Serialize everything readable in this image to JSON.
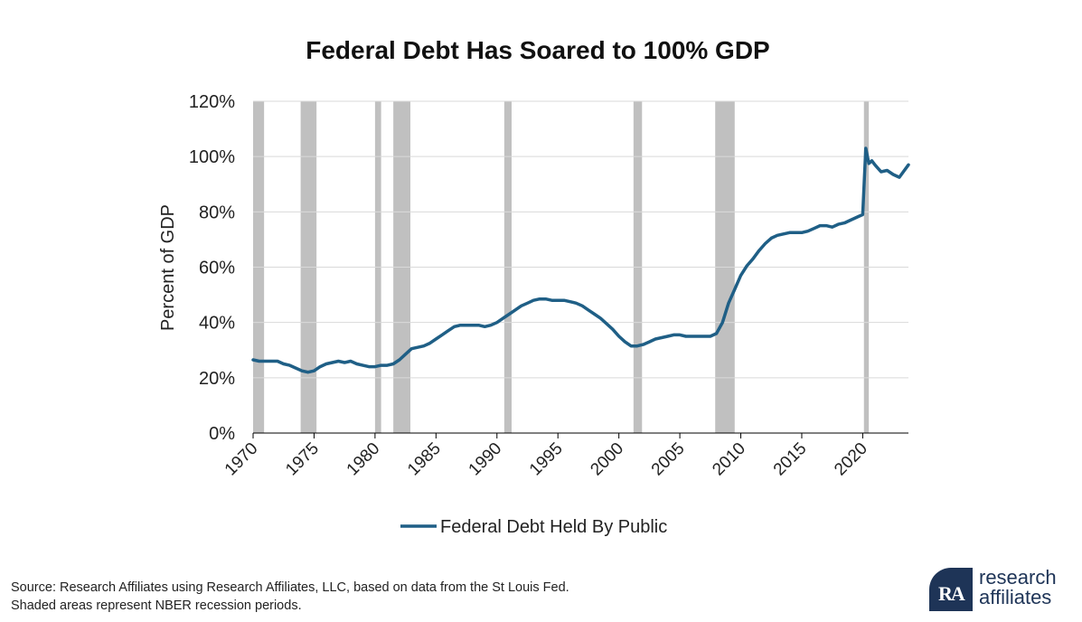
{
  "chart_data": {
    "type": "line",
    "title": "Federal Debt Has Soared to 100% GDP",
    "xlabel": "",
    "ylabel": "Percent of GDP",
    "xlim": [
      1970,
      2023.75
    ],
    "ylim": [
      0,
      120
    ],
    "y_ticks": [
      0,
      20,
      40,
      60,
      80,
      100,
      120
    ],
    "y_tick_labels": [
      "0%",
      "20%",
      "40%",
      "60%",
      "80%",
      "100%",
      "120%"
    ],
    "x_ticks": [
      1970,
      1975,
      1980,
      1985,
      1990,
      1995,
      2000,
      2005,
      2010,
      2015,
      2020
    ],
    "x_tick_labels": [
      "1970",
      "1975",
      "1980",
      "1985",
      "1990",
      "1995",
      "2000",
      "2005",
      "2010",
      "2015",
      "2020"
    ],
    "grid": "horizontal",
    "legend_position": "bottom-center",
    "recession_periods": [
      [
        1970.0,
        1970.9
      ],
      [
        1973.9,
        1975.2
      ],
      [
        1980.0,
        1980.5
      ],
      [
        1981.5,
        1982.9
      ],
      [
        1990.6,
        1991.2
      ],
      [
        2001.2,
        2001.9
      ],
      [
        2007.9,
        2009.5
      ],
      [
        2020.1,
        2020.5
      ]
    ],
    "series": [
      {
        "name": "Federal Debt Held By Public",
        "color": "#1f5f86",
        "x": [
          1970.0,
          1970.5,
          1971.0,
          1971.5,
          1972.0,
          1972.5,
          1973.0,
          1973.5,
          1974.0,
          1974.5,
          1975.0,
          1975.5,
          1976.0,
          1976.5,
          1977.0,
          1977.5,
          1978.0,
          1978.5,
          1979.0,
          1979.5,
          1980.0,
          1980.5,
          1981.0,
          1981.5,
          1982.0,
          1982.5,
          1983.0,
          1983.5,
          1984.0,
          1984.5,
          1985.0,
          1985.5,
          1986.0,
          1986.5,
          1987.0,
          1987.5,
          1988.0,
          1988.5,
          1989.0,
          1989.5,
          1990.0,
          1990.5,
          1991.0,
          1991.5,
          1992.0,
          1992.5,
          1993.0,
          1993.5,
          1994.0,
          1994.5,
          1995.0,
          1995.5,
          1996.0,
          1996.5,
          1997.0,
          1997.5,
          1998.0,
          1998.5,
          1999.0,
          1999.5,
          2000.0,
          2000.5,
          2001.0,
          2001.5,
          2002.0,
          2002.5,
          2003.0,
          2003.5,
          2004.0,
          2004.5,
          2005.0,
          2005.5,
          2006.0,
          2006.5,
          2007.0,
          2007.5,
          2008.0,
          2008.5,
          2009.0,
          2009.5,
          2010.0,
          2010.5,
          2011.0,
          2011.5,
          2012.0,
          2012.5,
          2013.0,
          2013.5,
          2014.0,
          2014.5,
          2015.0,
          2015.5,
          2016.0,
          2016.5,
          2017.0,
          2017.5,
          2018.0,
          2018.5,
          2019.0,
          2019.5,
          2020.0,
          2020.25,
          2020.5,
          2020.75,
          2021.0,
          2021.5,
          2022.0,
          2022.5,
          2023.0,
          2023.75
        ],
        "values": [
          26.5,
          26.0,
          26.0,
          26.0,
          26.0,
          25.0,
          24.5,
          23.5,
          22.5,
          22.0,
          22.5,
          24.0,
          25.0,
          25.5,
          26.0,
          25.5,
          26.0,
          25.0,
          24.5,
          24.0,
          24.0,
          24.5,
          24.5,
          25.0,
          26.5,
          28.5,
          30.5,
          31.0,
          31.5,
          32.5,
          34.0,
          35.5,
          37.0,
          38.5,
          39.0,
          39.0,
          39.0,
          39.0,
          38.5,
          39.0,
          40.0,
          41.5,
          43.0,
          44.5,
          46.0,
          47.0,
          48.0,
          48.5,
          48.5,
          48.0,
          48.0,
          48.0,
          47.5,
          47.0,
          46.0,
          44.5,
          43.0,
          41.5,
          39.5,
          37.5,
          35.0,
          33.0,
          31.5,
          31.5,
          32.0,
          33.0,
          34.0,
          34.5,
          35.0,
          35.5,
          35.5,
          35.0,
          35.0,
          35.0,
          35.0,
          35.0,
          36.0,
          40.0,
          47.0,
          52.0,
          57.0,
          60.5,
          63.0,
          66.0,
          68.5,
          70.5,
          71.5,
          72.0,
          72.5,
          72.5,
          72.5,
          73.0,
          74.0,
          75.0,
          75.0,
          74.5,
          75.5,
          76.0,
          77.0,
          78.0,
          79.0,
          103.0,
          97.5,
          98.5,
          97.0,
          94.5,
          95.0,
          93.5,
          92.5,
          97.0
        ]
      }
    ]
  },
  "source": {
    "line1": "Source: Research Affiliates using Research Affiliates, LLC, based on data from the St Louis Fed.",
    "line2": "Shaded areas represent NBER recession periods."
  },
  "logo": {
    "line1": "research",
    "line2": "affiliates",
    "brand_color": "#1e3457"
  }
}
